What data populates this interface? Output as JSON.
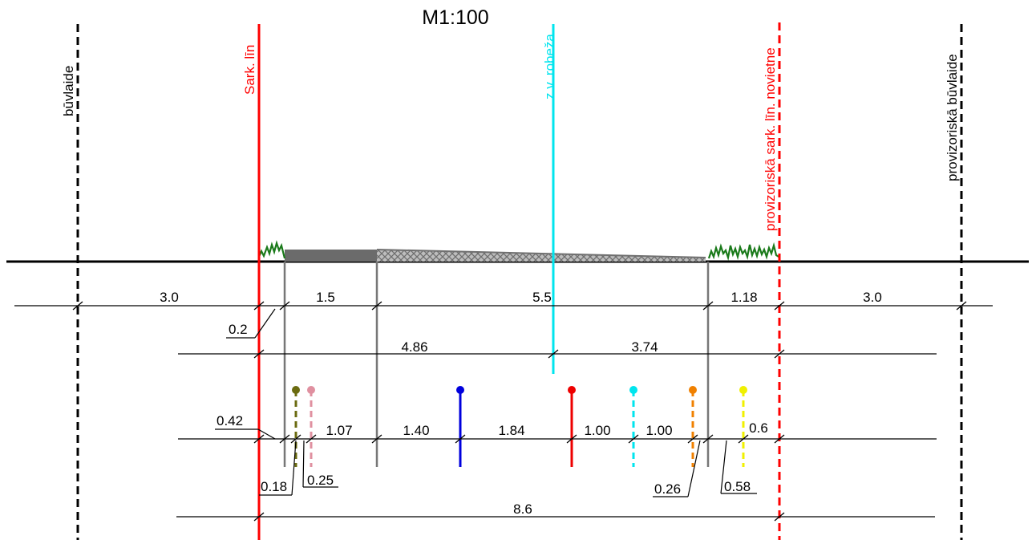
{
  "title": "M1:100",
  "labels": {
    "buvlaide_left": "būvlaide",
    "sark_lin": "Sark. līn",
    "zv_robeza": "z.v. robeža",
    "prov_sark_lin": "provizoriskā sark. līn. novietne",
    "prov_buvlaide": "provizoriskā būvlaide"
  },
  "dims_row1": [
    "3.0",
    "1.5",
    "5.5",
    "1.18",
    "3.0"
  ],
  "dims_row1_extra": "0.2",
  "dims_row2": [
    "4.86",
    "3.74"
  ],
  "dims_row3": [
    "1.07",
    "1.40",
    "1.84",
    "1.00",
    "1.00",
    "0.6"
  ],
  "dims_row3_callouts": [
    "0.42",
    "0.18",
    "0.25",
    "0.26",
    "0.58"
  ],
  "dims_row4": "8.6",
  "colors": {
    "red_line": "#ff0000",
    "cyan_line": "#00e5ee",
    "grass": "#1a7a1a",
    "road": "#707070",
    "utility_olive": "#6b6b10",
    "utility_pink": "#e090a0",
    "utility_blue": "#0000dd",
    "utility_red": "#ee0000",
    "utility_cyan": "#00e5ee",
    "utility_orange": "#f08000",
    "utility_yellow": "#f0f000"
  }
}
